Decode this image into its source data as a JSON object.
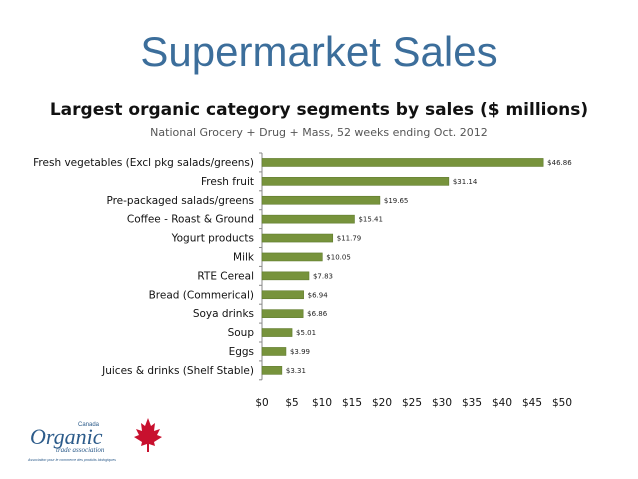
{
  "slide": {
    "title": "Supermarket Sales",
    "logo": {
      "name": "Canada Organic Trade Association",
      "text_small": "Canada",
      "text_main": "Organic",
      "text_sub": "trade association",
      "text_fr": "Association pour le commerce des produits biologiques"
    }
  },
  "chart_data": {
    "type": "bar",
    "orientation": "horizontal",
    "title": "Largest organic category segments by sales ($ millions)",
    "subtitle": "National Grocery + Drug + Mass, 52 weeks ending Oct. 2012",
    "categories": [
      "Fresh vegetables (Excl pkg salads/greens)",
      "Fresh fruit",
      "Pre-packaged salads/greens",
      "Coffee - Roast & Ground",
      "Yogurt products",
      "Milk",
      "RTE Cereal",
      "Bread (Commerical)",
      "Soya drinks",
      "Soup",
      "Eggs",
      "Juices & drinks (Shelf Stable)"
    ],
    "values": [
      46.86,
      31.14,
      19.65,
      15.41,
      11.79,
      10.05,
      7.83,
      6.94,
      6.86,
      5.01,
      3.99,
      3.31
    ],
    "data_labels": [
      "$46.86",
      "$31.14",
      "$19.65",
      "$15.41",
      "$11.79",
      "$10.05",
      "$7.83",
      "$6.94",
      "$6.86",
      "$5.01",
      "$3.99",
      "$3.31"
    ],
    "x_ticks": [
      "$0",
      "$5",
      "$10",
      "$15",
      "$20",
      "$25",
      "$30",
      "$35",
      "$40",
      "$45",
      "$50"
    ],
    "xlim": [
      0,
      50
    ],
    "grid": false,
    "legend": "none",
    "bar_color": "#77933c",
    "bar_edge_color": "#5f7a2c"
  }
}
